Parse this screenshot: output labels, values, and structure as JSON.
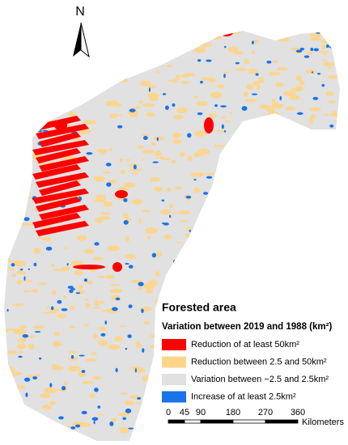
{
  "north_arrow": {
    "label": "N"
  },
  "legend": {
    "title": "Forested area",
    "subtitle": "Variation between 2019 and 1988 (km²)",
    "items": [
      {
        "label": "Reduction of at least 50km²",
        "color": "#ff0000"
      },
      {
        "label": "Reduction between 2.5 and 50km²",
        "color": "#fdd58a"
      },
      {
        "label": "Variation between −2.5 and 2.5km²",
        "color": "#e1e1e1"
      },
      {
        "label": "Increase of at least 2.5km²",
        "color": "#1a73e8"
      }
    ]
  },
  "scale_bar": {
    "ticks": [
      0,
      45,
      90,
      180,
      270,
      360
    ],
    "unit": "Kilometers"
  }
}
